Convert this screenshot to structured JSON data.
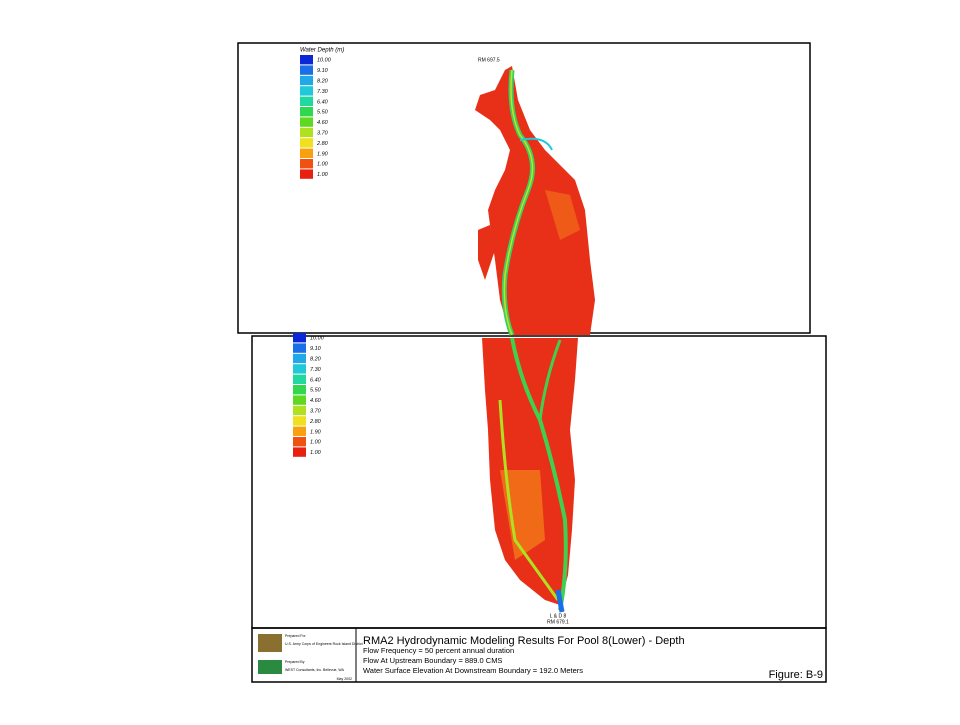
{
  "upper_panel": {
    "legend_title": "Water Depth (m)",
    "label_top": "RM 697.5"
  },
  "legend": [
    {
      "label": "10.00",
      "color": "#0a28d8"
    },
    {
      "label": "9.10",
      "color": "#1a6ee8"
    },
    {
      "label": "8.20",
      "color": "#20a8e8"
    },
    {
      "label": "7.30",
      "color": "#20c8d8"
    },
    {
      "label": "6.40",
      "color": "#20d8a0"
    },
    {
      "label": "5.50",
      "color": "#30d850"
    },
    {
      "label": "4.60",
      "color": "#60d820"
    },
    {
      "label": "3.70",
      "color": "#b0e020"
    },
    {
      "label": "2.80",
      "color": "#f0e020"
    },
    {
      "label": "1.90",
      "color": "#f8a010"
    },
    {
      "label": "1.00",
      "color": "#f05010"
    },
    {
      "label": "1.00",
      "color": "#e82010"
    }
  ],
  "lower_panel": {
    "label_lock": "L & D 8",
    "label_rm": "RM 679.1"
  },
  "title_block": {
    "prepared_for": "Prepared For",
    "client": "U.S. Army Corps of Engineers Rock Island District",
    "prepared_by": "Prepared By",
    "consultant": "WEST Consultants, Inc. Bellevue, WA",
    "date": "May 2002",
    "title": "RMA2 Hydrodynamic Modeling Results For Pool 8(Lower) - Depth",
    "lines": [
      "Flow Frequency = 50 percent annual duration",
      "Flow At Upstream Boundary = 889.0 CMS",
      "Water Surface Elevation At Downstream Boundary = 192.0 Meters"
    ],
    "figure": "Figure: B-9"
  }
}
